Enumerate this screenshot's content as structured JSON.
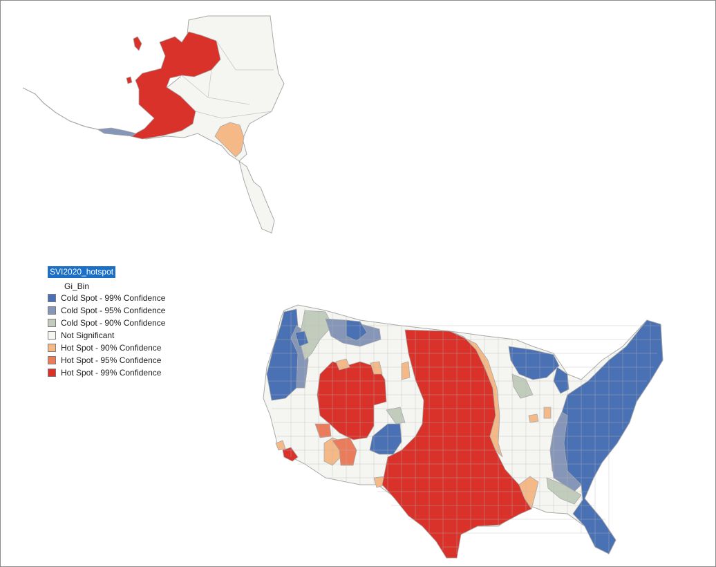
{
  "layer": {
    "name": "SVI2020_hotspot",
    "field": "Gi_Bin"
  },
  "legend": {
    "items": [
      {
        "label": "Cold Spot - 99% Confidence",
        "color": "#4a71b3"
      },
      {
        "label": "Cold Spot - 95% Confidence",
        "color": "#8596b9"
      },
      {
        "label": "Cold Spot - 90% Confidence",
        "color": "#c2ccbd"
      },
      {
        "label": "Not Significant",
        "color": "#f5f5f2"
      },
      {
        "label": "Hot Spot - 90% Confidence",
        "color": "#f5b887"
      },
      {
        "label": "Hot Spot - 95% Confidence",
        "color": "#ea7b5b"
      },
      {
        "label": "Hot Spot - 99% Confidence",
        "color": "#d8322b"
      }
    ]
  },
  "map": {
    "regions": [
      "Alaska",
      "Contiguous United States"
    ],
    "border_color": "#a8a8a8"
  }
}
